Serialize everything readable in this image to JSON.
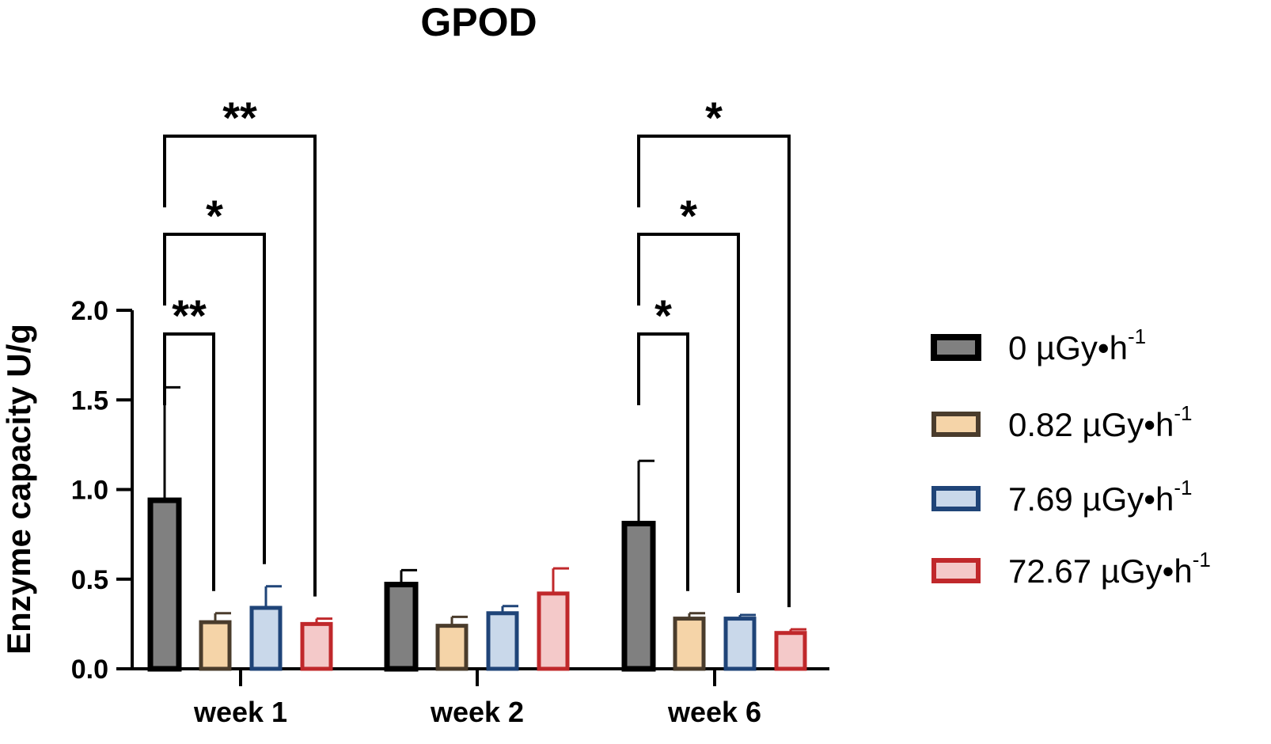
{
  "chart_data": {
    "type": "bar",
    "title": "GPOD",
    "xlabel": "",
    "ylabel": "Enzyme capacity U/g",
    "ylim": [
      0,
      2.0
    ],
    "yticks": [
      "0.0",
      "0.5",
      "1.0",
      "1.5",
      "2.0"
    ],
    "categories": [
      "week 1",
      "week 2",
      "week 6"
    ],
    "series": [
      {
        "name": "0 µGy•h",
        "sup": "-1",
        "fill": "#808080",
        "stroke": "#000000",
        "values": [
          0.94,
          0.47,
          0.81
        ],
        "errors": [
          0.63,
          0.08,
          0.35
        ]
      },
      {
        "name": "0.82 µGy•h",
        "sup": "-1",
        "fill": "#F5D4A8",
        "stroke": "#4A3C2C",
        "values": [
          0.26,
          0.24,
          0.28
        ],
        "errors": [
          0.05,
          0.05,
          0.03
        ]
      },
      {
        "name": "7.69 µGy•h",
        "sup": "-1",
        "fill": "#C9D8EA",
        "stroke": "#1F4478",
        "values": [
          0.34,
          0.31,
          0.28
        ],
        "errors": [
          0.12,
          0.04,
          0.02
        ]
      },
      {
        "name": "72.67 µGy•h",
        "sup": "-1",
        "fill": "#F4C9C9",
        "stroke": "#C0282B",
        "values": [
          0.25,
          0.42,
          0.2
        ],
        "errors": [
          0.03,
          0.14,
          0.02
        ]
      }
    ],
    "significance": [
      {
        "category": "week 1",
        "compare_to": "0.82 µGy•h",
        "label": "**"
      },
      {
        "category": "week 1",
        "compare_to": "7.69 µGy•h",
        "label": "*"
      },
      {
        "category": "week 1",
        "compare_to": "72.67 µGy•h",
        "label": "**"
      },
      {
        "category": "week 6",
        "compare_to": "0.82 µGy•h",
        "label": "*"
      },
      {
        "category": "week 6",
        "compare_to": "7.69 µGy•h",
        "label": "*"
      },
      {
        "category": "week 6",
        "compare_to": "72.67 µGy•h",
        "label": "*"
      }
    ],
    "legend_position": "right"
  }
}
